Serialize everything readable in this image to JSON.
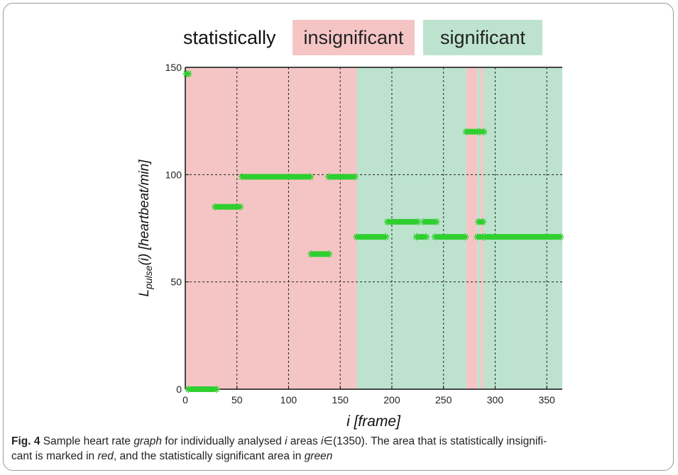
{
  "legend": {
    "prefix": "statistically",
    "insignificant_label": "insignificant",
    "significant_label": "significant",
    "insignificant_color": "#f5c5c5",
    "significant_color": "#bde3cf"
  },
  "chart_data": {
    "type": "scatter",
    "xlabel": "i [frame]",
    "ylabel_base": "L",
    "ylabel_sub": "pulse",
    "ylabel_rest": "(i) [heartbeat/min]",
    "xlim": [
      0,
      365
    ],
    "ylim": [
      0,
      150
    ],
    "xticks": [
      0,
      50,
      100,
      150,
      200,
      250,
      300,
      350
    ],
    "yticks": [
      0,
      50,
      100,
      150
    ],
    "grid": true,
    "marker_color": "#2fcf2f",
    "regions": [
      {
        "status": "insignificant",
        "x0": 0,
        "x1": 166
      },
      {
        "status": "significant",
        "x0": 166,
        "x1": 272
      },
      {
        "status": "insignificant",
        "x0": 272,
        "x1": 283
      },
      {
        "status": "significant",
        "x0": 283,
        "x1": 286
      },
      {
        "status": "insignificant",
        "x0": 286,
        "x1": 289
      },
      {
        "status": "significant",
        "x0": 289,
        "x1": 365
      }
    ],
    "segments": [
      {
        "x0": 1,
        "x1": 3,
        "y": 147
      },
      {
        "x0": 3,
        "x1": 30,
        "y": 0
      },
      {
        "x0": 29,
        "x1": 53,
        "y": 85
      },
      {
        "x0": 55,
        "x1": 121,
        "y": 99
      },
      {
        "x0": 122,
        "x1": 139,
        "y": 63
      },
      {
        "x0": 139,
        "x1": 164,
        "y": 99
      },
      {
        "x0": 166,
        "x1": 194,
        "y": 71
      },
      {
        "x0": 196,
        "x1": 225,
        "y": 78
      },
      {
        "x0": 224,
        "x1": 233,
        "y": 71
      },
      {
        "x0": 231,
        "x1": 243,
        "y": 78
      },
      {
        "x0": 242,
        "x1": 271,
        "y": 71
      },
      {
        "x0": 272,
        "x1": 283,
        "y": 120
      },
      {
        "x0": 285,
        "x1": 289,
        "y": 120
      },
      {
        "x0": 284,
        "x1": 288,
        "y": 78
      },
      {
        "x0": 283,
        "x1": 288,
        "y": 71
      },
      {
        "x0": 290,
        "x1": 363,
        "y": 71
      }
    ]
  },
  "caption": {
    "fig_label": "Fig. 4",
    "t1": "  Sample heart rate ",
    "e1": "graph",
    "t2": " for individually analysed ",
    "e2": "i",
    "t3": " areas ",
    "e3": "i",
    "t4": "∈(1350). The area that is statistically insignifi-",
    "t5": "cant is marked in ",
    "e4": "red",
    "t6": ", and the statistically significant area in ",
    "e5": "green"
  }
}
